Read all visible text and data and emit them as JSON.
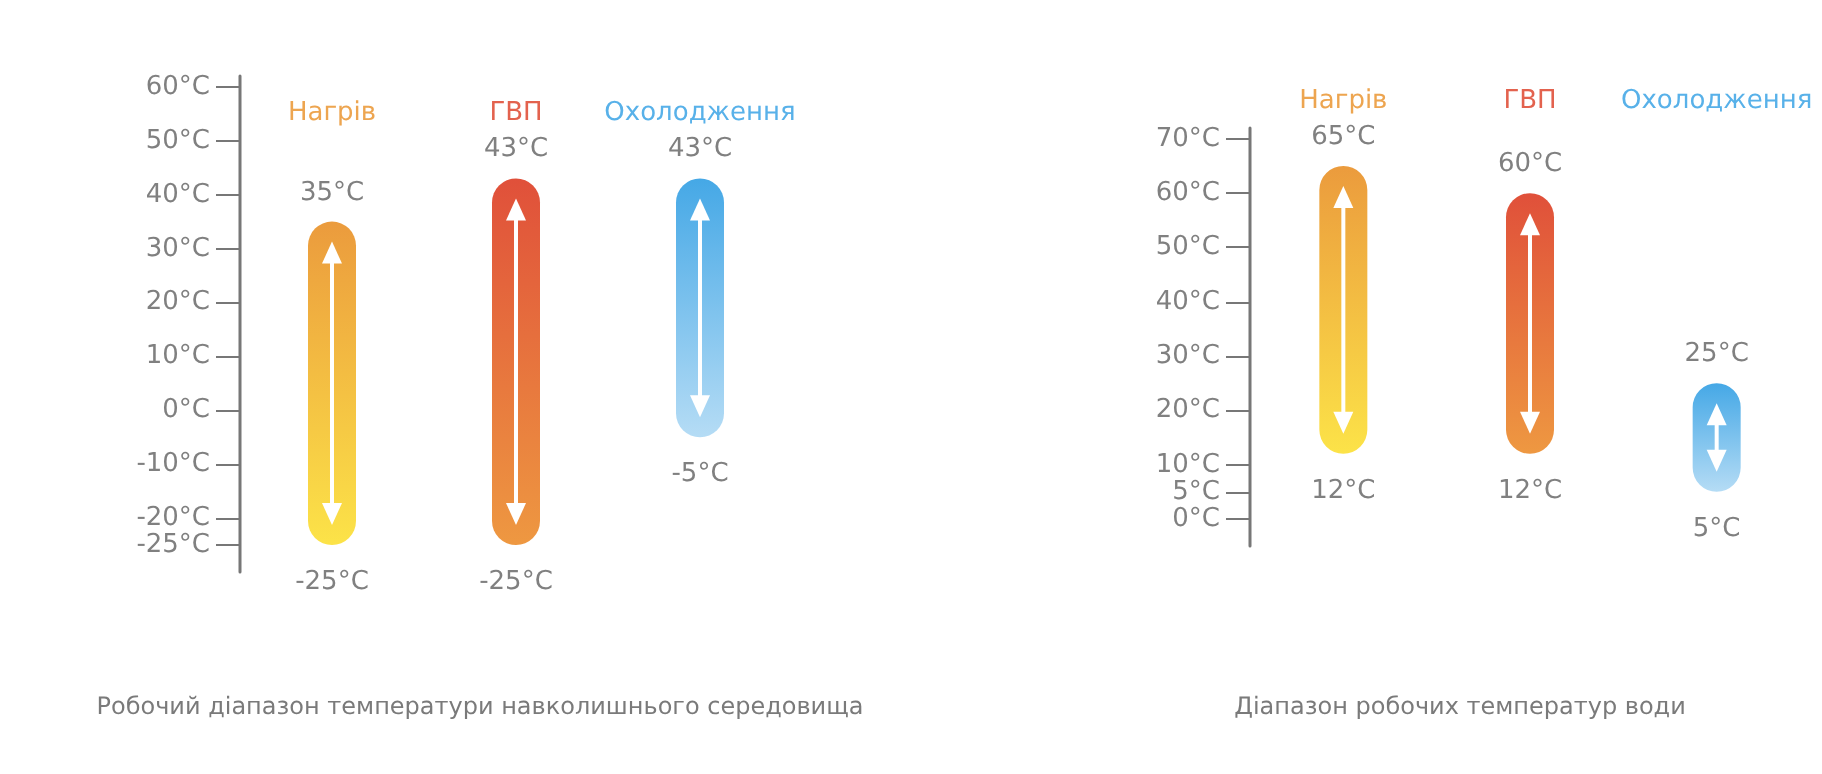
{
  "chart_data": [
    {
      "type": "bar",
      "categories": [
        "Нагрів",
        "ГВП",
        "Охолодження"
      ],
      "base": [
        -25,
        -25,
        -5
      ],
      "values": [
        60,
        68,
        48
      ],
      "colors": [
        "#eb9b3d",
        "#e0503a",
        "#45a8e6"
      ],
      "ylim": [
        -30,
        62
      ],
      "yticks": [
        {
          "value": -25,
          "label": "-25°C"
        },
        {
          "value": -20,
          "label": "-20°C"
        },
        {
          "value": -10,
          "label": "-10°C"
        },
        {
          "value": 0,
          "label": "0°C"
        },
        {
          "value": 10,
          "label": "10°C"
        },
        {
          "value": 20,
          "label": "20°C"
        },
        {
          "value": 30,
          "label": "30°C"
        },
        {
          "value": 40,
          "label": "40°C"
        },
        {
          "value": 50,
          "label": "50°C"
        },
        {
          "value": 60,
          "label": "60°C"
        }
      ],
      "grid": false,
      "annotations": [
        {
          "text": "35°C",
          "x": "Нагрів",
          "y": 35
        },
        {
          "text": "-25°C",
          "x": "Нагрів",
          "y": -25
        },
        {
          "text": "43°C",
          "x": "ГВП",
          "y": 43
        },
        {
          "text": "-25°C",
          "x": "ГВП",
          "y": -25
        },
        {
          "text": "43°C",
          "x": "Охолодження",
          "y": 43
        },
        {
          "text": "-5°C",
          "x": "Охолодження",
          "y": -5
        },
        "Робочий діапазон температури навколишнього середовища"
      ]
    },
    {
      "type": "bar",
      "categories": [
        "Нагрів",
        "ГВП",
        "Охолодження"
      ],
      "base": [
        12,
        12,
        5
      ],
      "values": [
        53,
        48,
        20
      ],
      "colors": [
        "#eb9b3d",
        "#e0503a",
        "#45a8e6"
      ],
      "ylim": [
        -5,
        72
      ],
      "yticks": [
        {
          "value": 0,
          "label": "0°C"
        },
        {
          "value": 5,
          "label": "5°C"
        },
        {
          "value": 10,
          "label": "10°C"
        },
        {
          "value": 20,
          "label": "20°C"
        },
        {
          "value": 30,
          "label": "30°C"
        },
        {
          "value": 40,
          "label": "40°C"
        },
        {
          "value": 50,
          "label": "50°C"
        },
        {
          "value": 60,
          "label": "60°C"
        },
        {
          "value": 70,
          "label": "70°C"
        }
      ],
      "grid": false,
      "annotations": [
        {
          "text": "65°C",
          "x": "Нагрів",
          "y": 65
        },
        {
          "text": "12°C",
          "x": "Нагрів",
          "y": 12
        },
        {
          "text": "60°C",
          "x": "ГВП",
          "y": 60
        },
        {
          "text": "12°C",
          "x": "ГВП",
          "y": 12
        },
        {
          "text": "25°C",
          "x": "Охолодження",
          "y": 25
        },
        {
          "text": "5°C",
          "x": "Охолодження",
          "y": 5
        },
        "Діапазон робочих температур води"
      ]
    }
  ]
}
